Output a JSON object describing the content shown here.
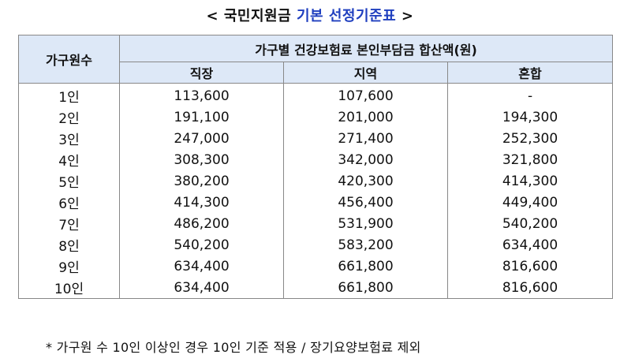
{
  "title": {
    "prefix": "< ",
    "black": "국민지원금 ",
    "blue": "기본 선정기준표",
    "suffix": " >"
  },
  "table": {
    "row_header": "가구원수",
    "group_header": "가구별 건강보험료 본인부담금 합산액(원)",
    "columns": [
      "직장",
      "지역",
      "혼합"
    ],
    "rows": [
      {
        "label": "1인",
        "values": [
          "113,600",
          "107,600",
          "-"
        ]
      },
      {
        "label": "2인",
        "values": [
          "191,100",
          "201,000",
          "194,300"
        ]
      },
      {
        "label": "3인",
        "values": [
          "247,000",
          "271,400",
          "252,300"
        ]
      },
      {
        "label": "4인",
        "values": [
          "308,300",
          "342,000",
          "321,800"
        ]
      },
      {
        "label": "5인",
        "values": [
          "380,200",
          "420,300",
          "414,300"
        ]
      },
      {
        "label": "6인",
        "values": [
          "414,300",
          "456,400",
          "449,400"
        ]
      },
      {
        "label": "7인",
        "values": [
          "486,200",
          "531,900",
          "540,200"
        ]
      },
      {
        "label": "8인",
        "values": [
          "540,200",
          "583,200",
          "634,400"
        ]
      },
      {
        "label": "9인",
        "values": [
          "634,400",
          "661,800",
          "816,600"
        ]
      },
      {
        "label": "10인",
        "values": [
          "634,400",
          "661,800",
          "816,600"
        ]
      }
    ]
  },
  "footnote": "* 가구원 수 10인 이상인 경우 10인 기준 적용 / 장기요양보험료 제외",
  "colors": {
    "header_bg": "#dde8f7",
    "accent": "#1f3fbf",
    "border": "#888888"
  }
}
